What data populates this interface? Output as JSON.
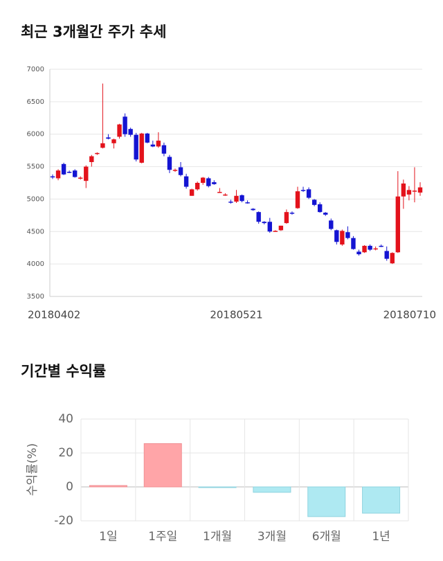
{
  "chart_data": [
    {
      "type": "candlestick",
      "title": "최근 3개월간 주가 추세",
      "categories": [
        "20180402",
        null,
        null,
        null,
        null,
        null,
        null,
        null,
        null,
        null,
        null,
        null,
        null,
        null,
        null,
        null,
        null,
        null,
        null,
        null,
        null,
        null,
        null,
        null,
        null,
        null,
        null,
        null,
        null,
        null,
        null,
        null,
        null,
        "20180521",
        null,
        null,
        null,
        null,
        null,
        null,
        null,
        null,
        null,
        null,
        null,
        null,
        null,
        null,
        null,
        null,
        null,
        null,
        null,
        null,
        null,
        null,
        null,
        null,
        null,
        null,
        null,
        null,
        null,
        null,
        null,
        null,
        "20180710"
      ],
      "open": [
        5350,
        5320,
        5540,
        5420,
        5440,
        5320,
        5280,
        5570,
        5700,
        5790,
        5950,
        5860,
        5960,
        6270,
        6080,
        5990,
        5560,
        6010,
        5840,
        5810,
        5830,
        5650,
        5440,
        5490,
        5350,
        5050,
        5150,
        5250,
        5320,
        5260,
        5110,
        5060,
        4960,
        4960,
        5060,
        4950,
        4850,
        4800,
        4650,
        4650,
        4510,
        4520,
        4630,
        4790,
        4860,
        5140,
        5150,
        4990,
        4920,
        4790,
        4670,
        4520,
        4300,
        4490,
        4400,
        4190,
        4180,
        4280,
        4230,
        4280,
        4200,
        4010,
        4180,
        5040,
        5070,
        5120,
        5100
      ],
      "high": [
        5380,
        5460,
        5560,
        5440,
        5460,
        5350,
        5520,
        5680,
        5720,
        6780,
        6000,
        5930,
        6160,
        6320,
        6100,
        6020,
        6020,
        6020,
        5900,
        6030,
        5870,
        5680,
        5470,
        5570,
        5390,
        5160,
        5270,
        5340,
        5340,
        5290,
        5170,
        5090,
        4990,
        5140,
        5070,
        4980,
        4860,
        4810,
        4660,
        4710,
        4520,
        4590,
        4840,
        4810,
        5190,
        5190,
        5180,
        5000,
        4950,
        4800,
        4700,
        4530,
        4530,
        4580,
        4430,
        4220,
        4290,
        4300,
        4270,
        4300,
        4270,
        4180,
        5430,
        5300,
        5200,
        5490,
        5260
      ],
      "low": [
        5310,
        5290,
        5370,
        5400,
        5330,
        5300,
        5170,
        5500,
        5680,
        5780,
        5920,
        5780,
        5930,
        5960,
        5960,
        5580,
        5550,
        5860,
        5800,
        5790,
        5660,
        5400,
        5420,
        5350,
        5160,
        5050,
        5130,
        5220,
        5180,
        5220,
        5100,
        5050,
        4930,
        4940,
        4950,
        4930,
        4820,
        4620,
        4610,
        4480,
        4500,
        4510,
        4620,
        4760,
        4850,
        5110,
        5000,
        4890,
        4790,
        4740,
        4520,
        4300,
        4280,
        4380,
        4220,
        4130,
        4170,
        4200,
        4210,
        4260,
        4050,
        4000,
        4170,
        4850,
        4980,
        4950,
        5050
      ],
      "close": [
        5340,
        5440,
        5380,
        5410,
        5340,
        5330,
        5500,
        5660,
        5710,
        5860,
        5930,
        5920,
        6150,
        6000,
        5990,
        5610,
        6010,
        5870,
        5810,
        5900,
        5700,
        5450,
        5450,
        5370,
        5190,
        5150,
        5250,
        5330,
        5200,
        5230,
        5110,
        5070,
        4950,
        5050,
        4970,
        4940,
        4830,
        4650,
        4630,
        4500,
        4510,
        4590,
        4800,
        4780,
        5120,
        5130,
        5020,
        4910,
        4800,
        4760,
        4540,
        4340,
        4510,
        4400,
        4230,
        4150,
        4280,
        4220,
        4240,
        4270,
        4080,
        4170,
        5040,
        5240,
        5140,
        5130,
        5180
      ],
      "up_color": "#e3121b",
      "down_color": "#1414d2",
      "ylim": [
        3500,
        7000
      ],
      "yticks": [
        3500,
        4000,
        4500,
        5000,
        5500,
        6000,
        6500,
        7000
      ],
      "grid": true
    },
    {
      "type": "bar",
      "title": "기간별 수익률",
      "ylabel": "수익률(%)",
      "categories": [
        "1일",
        "1주일",
        "1개월",
        "3개월",
        "6개월",
        "1년"
      ],
      "values": [
        0.8,
        25.5,
        -0.3,
        -3.2,
        -17.5,
        -15.5
      ],
      "positive_color": "#ffa5a8",
      "negative_color": "#aee9f2",
      "ylim": [
        -20,
        40
      ],
      "yticks": [
        -20,
        0,
        20,
        40
      ],
      "grid": true
    }
  ]
}
